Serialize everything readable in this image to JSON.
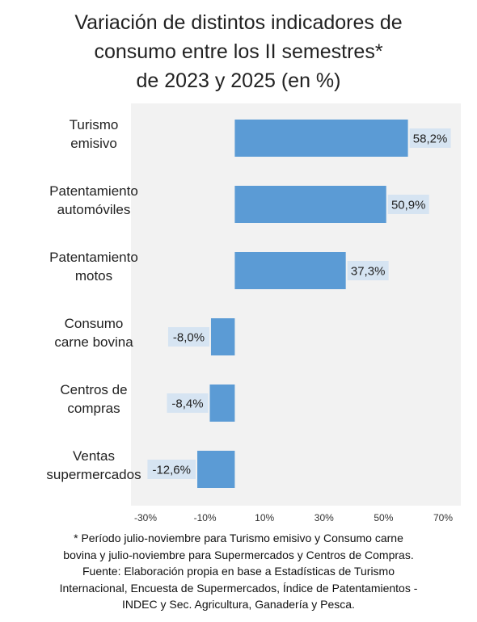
{
  "title_lines": [
    "Variación de distintos indicadores de",
    "consumo entre los II semestres*",
    "de 2023 y 2025 (en %)"
  ],
  "footnote_lines": [
    "* Período julio-noviembre para Turismo emisivo y  Consumo carne",
    "bovina y julio-noviembre para Supermercados y Centros de Compras.",
    "Fuente: Elaboración propia en base a Estadísticas de Turismo",
    "Internacional, Encuesta de Supermercados, Índice de Patentamientos -",
    "INDEC y  Sec. Agricultura, Ganadería y Pesca."
  ],
  "colors": {
    "bar": "#5b9bd5",
    "label_bg": "#d6e4f2",
    "plot_bg": "#f2f2f2"
  },
  "chart_data": {
    "type": "bar",
    "orientation": "horizontal",
    "categories": [
      [
        "Turismo",
        "emisivo"
      ],
      [
        "Patentamiento",
        "automóviles"
      ],
      [
        "Patentamiento",
        "motos"
      ],
      [
        "Consumo",
        "carne bovina"
      ],
      [
        "Centros de",
        "compras"
      ],
      [
        "Ventas",
        "supermercados"
      ]
    ],
    "values": [
      58.2,
      50.9,
      37.3,
      -8.0,
      -8.4,
      -12.6
    ],
    "value_labels": [
      "58,2%",
      "50,9%",
      "37,3%",
      "-8,0%",
      "-8,4%",
      "-12,6%"
    ],
    "xlim": [
      -30,
      70
    ],
    "xticks": [
      -30,
      -10,
      10,
      30,
      50,
      70
    ],
    "xtick_labels": [
      "-30%",
      "-10%",
      "10%",
      "30%",
      "50%",
      "70%"
    ],
    "grid": false,
    "legend": false
  }
}
